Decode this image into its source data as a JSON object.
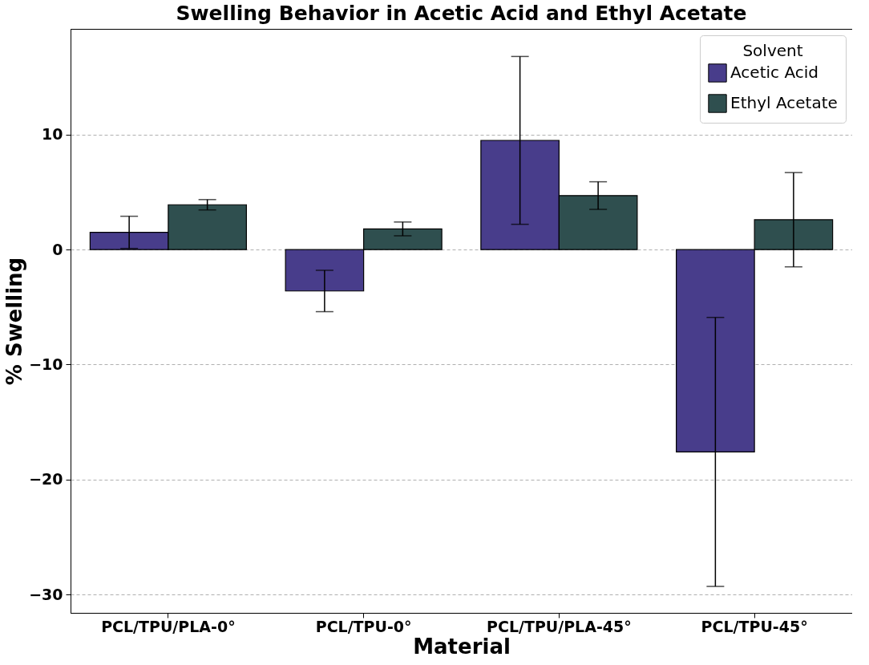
{
  "chart_data": {
    "type": "bar",
    "title": "Swelling Behavior in Acetic Acid and Ethyl Acetate",
    "xlabel": "Material",
    "ylabel": "% Swelling",
    "legend_title": "Solvent",
    "categories": [
      "PCL/TPU/PLA-0°",
      "PCL/TPU-0°",
      "PCL/TPU/PLA-45°",
      "PCL/TPU-45°"
    ],
    "series": [
      {
        "name": "Acetic Acid",
        "color": "#483d8b",
        "values": [
          1.5,
          -3.6,
          9.5,
          -17.6
        ],
        "errors": [
          1.4,
          1.8,
          7.3,
          11.7
        ]
      },
      {
        "name": "Ethyl Acetate",
        "color": "#2f4f4f",
        "values": [
          3.9,
          1.8,
          4.7,
          2.6
        ],
        "errors": [
          0.45,
          0.6,
          1.2,
          4.1
        ]
      }
    ],
    "ylim": [
      -31.6,
      19.2
    ],
    "yticks": [
      -30,
      -20,
      -10,
      0,
      10
    ],
    "grid": "y",
    "legend": "top right"
  }
}
